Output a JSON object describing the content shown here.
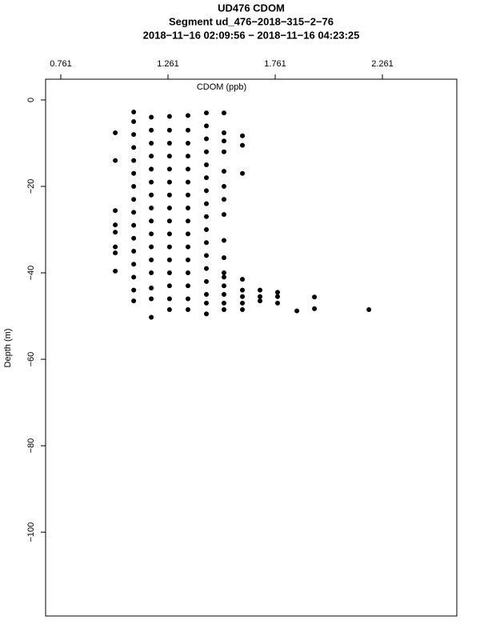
{
  "chart_data": {
    "type": "scatter",
    "title": "UD476 CDOM",
    "subtitle": [
      "Segment ud_476−2018−315−2−76",
      "2018−11−16 02:09:56 − 2018−11−16 04:23:25"
    ],
    "x_label": "CDOM (ppb)",
    "y_label": "Depth (m)",
    "xlim": [
      0.69,
      2.608
    ],
    "ylim": [
      -119.4,
      4.8
    ],
    "xticks": [
      0.761,
      1.261,
      1.761,
      2.261
    ],
    "yticks": [
      0,
      {
        "value": -20,
        "label": "−20"
      },
      {
        "value": -40,
        "label": "−40"
      },
      {
        "value": -60,
        "label": "−60"
      },
      {
        "value": -80,
        "label": "−80"
      },
      {
        "value": -100,
        "label": "−100"
      }
    ],
    "color": "#000000",
    "x": [
      1.015,
      1.015,
      1.015,
      1.015,
      1.015,
      1.015,
      1.015,
      1.015,
      1.101,
      1.101,
      1.101,
      1.101,
      1.101,
      1.101,
      1.101,
      1.101,
      1.101,
      1.101,
      1.101,
      1.101,
      1.101,
      1.101,
      1.101,
      1.101,
      1.183,
      1.183,
      1.183,
      1.183,
      1.183,
      1.183,
      1.183,
      1.183,
      1.183,
      1.183,
      1.183,
      1.183,
      1.183,
      1.183,
      1.183,
      1.183,
      1.268,
      1.268,
      1.268,
      1.268,
      1.268,
      1.268,
      1.268,
      1.268,
      1.268,
      1.268,
      1.268,
      1.268,
      1.268,
      1.268,
      1.268,
      1.268,
      1.354,
      1.354,
      1.354,
      1.354,
      1.354,
      1.354,
      1.354,
      1.354,
      1.354,
      1.354,
      1.354,
      1.354,
      1.354,
      1.354,
      1.354,
      1.354,
      1.44,
      1.44,
      1.44,
      1.44,
      1.44,
      1.44,
      1.44,
      1.44,
      1.44,
      1.44,
      1.44,
      1.44,
      1.44,
      1.44,
      1.44,
      1.44,
      1.44,
      1.522,
      1.522,
      1.522,
      1.522,
      1.522,
      1.522,
      1.522,
      1.522,
      1.522,
      1.522,
      1.522,
      1.522,
      1.522,
      1.522,
      1.522,
      1.522,
      1.608,
      1.608,
      1.608,
      1.608,
      1.608,
      1.608,
      1.608,
      1.608,
      1.69,
      1.69,
      1.69,
      1.772,
      1.772,
      1.772,
      1.862,
      1.944,
      1.944,
      2.198
    ],
    "values": [
      -7.6,
      -14,
      -25.6,
      -28.9,
      -30.6,
      -34,
      -35.4,
      -39.6,
      -2.8,
      -5,
      -8,
      -11,
      -14,
      -17,
      -20,
      -23,
      -26,
      -29,
      -32,
      -35,
      -38,
      -41,
      -44,
      -46.5,
      -4,
      -7,
      -10,
      -13,
      -16,
      -19,
      -22,
      -25,
      -28,
      -31,
      -34,
      -37,
      -40,
      -43.5,
      -46,
      -50.3,
      -3.8,
      -7,
      -10,
      -13,
      -16,
      -19,
      -22,
      -25,
      -28,
      -31,
      -34,
      -37,
      -40,
      -43,
      -46,
      -48.5,
      -3.6,
      -7,
      -10,
      -13,
      -16,
      -19,
      -22,
      -25,
      -28,
      -31,
      -34,
      -37,
      -40,
      -43,
      -46,
      -48.5,
      -3,
      -6,
      -9,
      -12,
      -15,
      -18,
      -21,
      -24,
      -27,
      -30,
      -33,
      -36,
      -39,
      -42,
      -45,
      -47,
      -49.5,
      -3,
      -7.6,
      -9.5,
      -12,
      -16.5,
      -20,
      -23,
      -26.5,
      -32.5,
      -36.5,
      -40,
      -41,
      -43,
      -45,
      -47,
      -48.5,
      -8.3,
      -10.5,
      -17,
      -41.5,
      -44,
      -45.5,
      -47,
      -48.5,
      -44,
      -45.5,
      -46.5,
      -44.5,
      -45.5,
      -47,
      -48.8,
      -45.6,
      -48.3,
      -48.5
    ]
  }
}
